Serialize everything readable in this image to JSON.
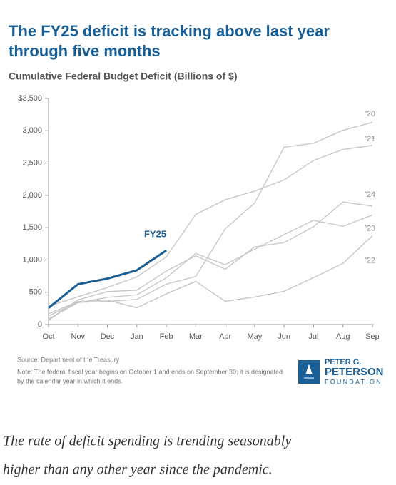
{
  "chart_data": {
    "type": "line",
    "title": "The FY25 deficit is tracking above last year through five months",
    "subtitle": "Cumulative Federal Budget Deficit (Billions of $)",
    "categories": [
      "Oct",
      "Nov",
      "Dec",
      "Jan",
      "Feb",
      "Mar",
      "Apr",
      "May",
      "Jun",
      "Jul",
      "Aug",
      "Sep"
    ],
    "series": [
      {
        "name": "'20",
        "color": "#c4c4c4",
        "values": [
          134,
          343,
          357,
          389,
          625,
          744,
          1482,
          1881,
          2745,
          2807,
          3007,
          3132
        ]
      },
      {
        "name": "'21",
        "color": "#c4c4c4",
        "values": [
          284,
          429,
          573,
          736,
          1047,
          1706,
          1932,
          2064,
          2238,
          2540,
          2711,
          2772
        ]
      },
      {
        "name": "'24",
        "color": "#c4c4c4",
        "values": [
          67,
          381,
          510,
          532,
          828,
          1065,
          855,
          1202,
          1268,
          1516,
          1897,
          1833
        ]
      },
      {
        "name": "'23",
        "color": "#c4c4c4",
        "values": [
          88,
          337,
          421,
          460,
          723,
          1100,
          925,
          1165,
          1393,
          1614,
          1521,
          1695
        ]
      },
      {
        "name": "'22",
        "color": "#c4c4c4",
        "values": [
          165,
          356,
          378,
          259,
          475,
          668,
          360,
          426,
          515,
          726,
          946,
          1375
        ]
      },
      {
        "name": "FY25",
        "color": "#1a5f96",
        "values": [
          257,
          624,
          711,
          840,
          1147,
          null,
          null,
          null,
          null,
          null,
          null,
          null
        ]
      }
    ],
    "ylim": [
      0,
      3500
    ],
    "yticks": [
      0,
      500,
      {
        "value": 1000,
        "label": "1,000"
      },
      {
        "value": 1500,
        "label": "1,500"
      },
      {
        "value": 2000,
        "label": "2,000"
      },
      {
        "value": 2500,
        "label": "2,500"
      },
      {
        "value": 3000,
        "label": "3,000"
      },
      {
        "value": 3500,
        "label": "$3,500"
      }
    ],
    "source": "Source: Department of the Treasury",
    "note": [
      "Note: The federal fiscal year begins on October 1 and ends on September 30; it is designated",
      "by the calendar year in which it ends."
    ],
    "logo": [
      "PETER G.",
      "PETERSON",
      "FOUNDATION"
    ]
  },
  "caption": [
    "The rate of deficit spending is trending seasonably",
    "higher than any other year since the pandemic."
  ]
}
